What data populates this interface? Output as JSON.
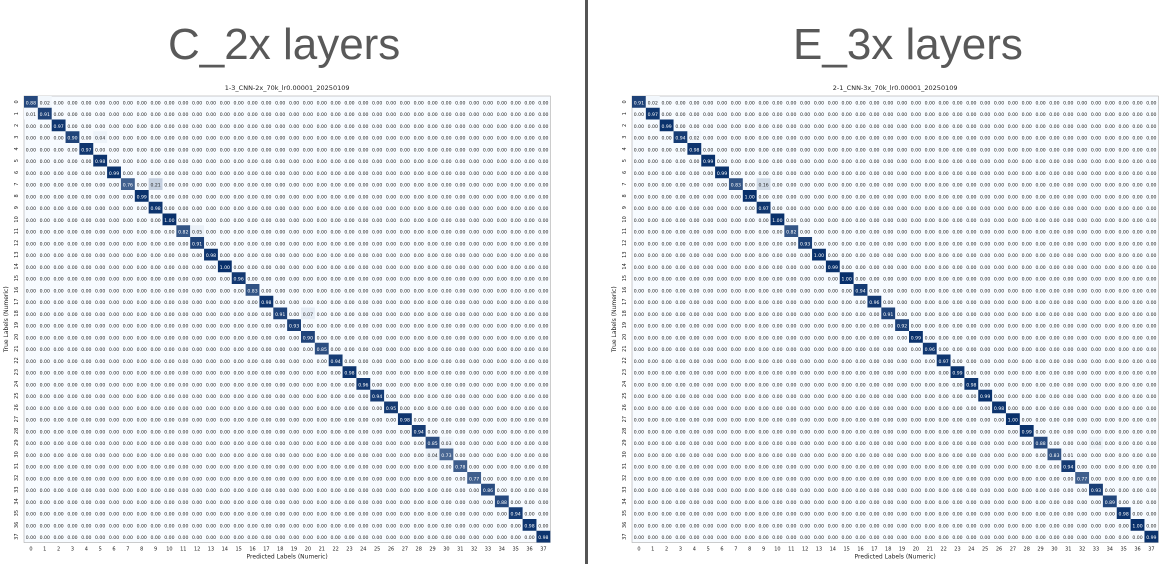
{
  "panels": [
    {
      "heading": "C_2x layers"
    },
    {
      "heading": "E_3x layers"
    }
  ],
  "chart_data": [
    {
      "type": "heatmap",
      "title": "1-3_CNN-2x_70k_lr0.00001_20250109",
      "xlabel": "Predicted Labels (Numeric)",
      "ylabel": "True Labels (Numeric)",
      "labels": [
        "0",
        "1",
        "2",
        "3",
        "4",
        "5",
        "6",
        "7",
        "8",
        "9",
        "10",
        "11",
        "12",
        "13",
        "14",
        "15",
        "16",
        "17",
        "18",
        "19",
        "20",
        "21",
        "22",
        "23",
        "24",
        "25",
        "26",
        "27",
        "28",
        "29",
        "30",
        "31",
        "32",
        "33",
        "34",
        "35",
        "36",
        "37"
      ],
      "diagonal": [
        0.88,
        0.91,
        0.97,
        0.9,
        0.97,
        0.98,
        0.99,
        0.76,
        0.99,
        0.98,
        1.0,
        0.82,
        0.91,
        0.98,
        1.0,
        0.96,
        0.83,
        0.98,
        0.91,
        0.93,
        0.9,
        0.85,
        0.94,
        0.98,
        0.96,
        0.94,
        0.95,
        0.98,
        0.94,
        0.85,
        0.73,
        0.78,
        0.77,
        0.86,
        0.88,
        0.94,
        0.98,
        0.98
      ],
      "off_diagonal": [
        {
          "row": 0,
          "col": 1,
          "value": 0.02
        },
        {
          "row": 1,
          "col": 0,
          "value": 0.01
        },
        {
          "row": 3,
          "col": 5,
          "value": 0.04
        },
        {
          "row": 7,
          "col": 9,
          "value": 0.21
        },
        {
          "row": 11,
          "col": 12,
          "value": 0.05
        },
        {
          "row": 18,
          "col": 20,
          "value": 0.07
        },
        {
          "row": 29,
          "col": 30,
          "value": 0.03
        },
        {
          "row": 30,
          "col": 29,
          "value": 0.04
        }
      ],
      "scale": "Blues"
    },
    {
      "type": "heatmap",
      "title": "2-1_CNN-3x_70k_lr0.00001_20250109",
      "xlabel": "Predicted Labels (Numeric)",
      "ylabel": "True Labels (Numeric)",
      "labels": [
        "0",
        "1",
        "2",
        "3",
        "4",
        "5",
        "6",
        "7",
        "8",
        "9",
        "10",
        "11",
        "12",
        "13",
        "14",
        "15",
        "16",
        "17",
        "18",
        "19",
        "20",
        "21",
        "22",
        "23",
        "24",
        "25",
        "26",
        "27",
        "28",
        "29",
        "30",
        "31",
        "32",
        "33",
        "34",
        "35",
        "36",
        "37"
      ],
      "diagonal": [
        0.91,
        0.97,
        0.99,
        0.94,
        0.98,
        0.99,
        0.99,
        0.83,
        1.0,
        0.97,
        1.0,
        0.82,
        0.93,
        1.0,
        0.99,
        1.0,
        0.94,
        0.96,
        0.91,
        0.92,
        0.99,
        0.96,
        0.97,
        0.99,
        0.98,
        0.99,
        0.98,
        1.0,
        0.99,
        0.88,
        0.83,
        0.94,
        0.77,
        0.93,
        0.89,
        0.98,
        1.0,
        0.99
      ],
      "off_diagonal": [
        {
          "row": 0,
          "col": 1,
          "value": 0.02
        },
        {
          "row": 3,
          "col": 4,
          "value": 0.02
        },
        {
          "row": 7,
          "col": 9,
          "value": 0.16
        },
        {
          "row": 29,
          "col": 33,
          "value": 0.04
        },
        {
          "row": 30,
          "col": 31,
          "value": 0.01
        }
      ],
      "scale": "Blues"
    }
  ]
}
